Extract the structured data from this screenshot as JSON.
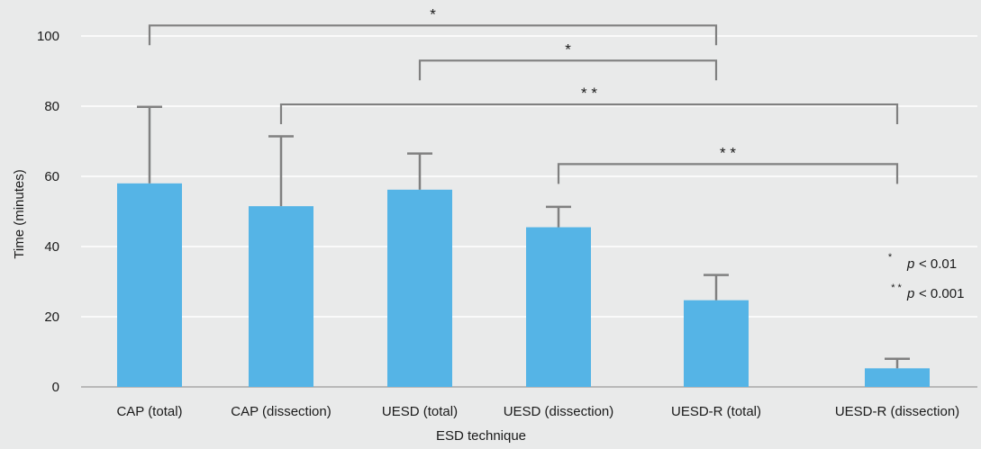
{
  "chart_data": {
    "type": "bar",
    "title": "",
    "xlabel": "ESD technique",
    "ylabel": "Time (minutes)",
    "ylim": [
      0,
      100
    ],
    "yticks": [
      0,
      20,
      40,
      60,
      80,
      100
    ],
    "grid": true,
    "categories": [
      "CAP (total)",
      "CAP (dissection)",
      "UESD (total)",
      "UESD (dissection)",
      "UESD-R (total)",
      "UESD-R (dissection)"
    ],
    "values": [
      58,
      51.5,
      56.2,
      45.5,
      24.7,
      5.3
    ],
    "error_upper": [
      79.8,
      71.4,
      66.5,
      51.3,
      31.9,
      8.0
    ],
    "significance": [
      {
        "from": 0,
        "to": 4,
        "y": 103,
        "label": "*"
      },
      {
        "from": 2,
        "to": 4,
        "y": 93,
        "label": "*"
      },
      {
        "from": 1,
        "to": 5,
        "y": 80.5,
        "label": "* *"
      },
      {
        "from": 3,
        "to": 5,
        "y": 63.5,
        "label": "* *"
      }
    ],
    "bar_color": "#55b4e6",
    "line_color": "#808080",
    "legend": {
      "placement": "right",
      "items": [
        {
          "stars": "*",
          "p": "p",
          "text": "< 0.01"
        },
        {
          "stars": "* *",
          "p": "p",
          "text": "< 0.001"
        }
      ]
    }
  }
}
